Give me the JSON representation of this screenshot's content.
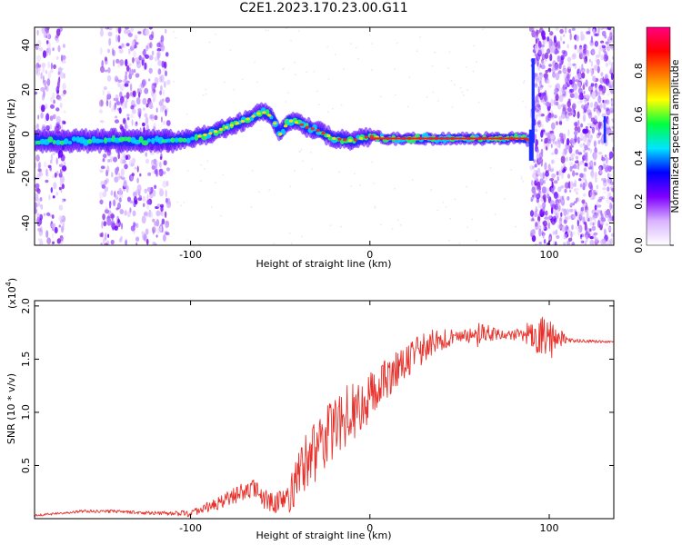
{
  "title": "C2E1.2023.170.23.00.G11",
  "chart_data": [
    {
      "type": "heatmap",
      "xlabel": "Height of straight line (km)",
      "ylabel": "Frequency (Hz)",
      "xlim": [
        -187,
        136
      ],
      "ylim": [
        -50,
        48
      ],
      "x_ticks": [
        -100,
        0,
        100
      ],
      "y_ticks": [
        -40,
        -20,
        0,
        20,
        40
      ],
      "colorbar": {
        "label": "Normalized spectral amplitude",
        "range": [
          0,
          1
        ],
        "ticks": [
          "0.0",
          "0.2",
          "0.4",
          "0.6",
          "0.8"
        ],
        "colors": [
          "#ffffff",
          "#d9b3ff",
          "#8000ff",
          "#0000ff",
          "#00e5ff",
          "#00ff40",
          "#ffff00",
          "#ff8000",
          "#ff0000",
          "#ff0080"
        ]
      },
      "ridge": {
        "x": [
          -187,
          -170,
          -150,
          -130,
          -110,
          -100,
          -90,
          -80,
          -70,
          -60,
          -55,
          -50,
          -45,
          -40,
          -35,
          -30,
          -20,
          -10,
          0,
          10,
          30,
          50,
          70,
          85,
          90
        ],
        "y": [
          -3,
          -3,
          -3,
          -3,
          -3,
          -2,
          0,
          3,
          6,
          10,
          8,
          0,
          6,
          5,
          3,
          2,
          -2,
          -3,
          -1,
          -2,
          -2,
          -2,
          -2,
          -2,
          -3
        ]
      },
      "noise_bands": [
        [
          -187,
          -170
        ],
        [
          -150,
          -112
        ],
        [
          90,
          136
        ]
      ]
    },
    {
      "type": "line",
      "xlabel": "Height of straight line (km)",
      "ylabel": "SNR (10 * v/v)",
      "y_multiplier": "(x10",
      "y_exponent": "4",
      "xlim": [
        -187,
        136
      ],
      "ylim": [
        0,
        2.05
      ],
      "x_ticks": [
        -100,
        0,
        100
      ],
      "y_ticks": [
        "0.5",
        "1.0",
        "1.5",
        "2.0"
      ],
      "color": "#e8302a",
      "envelope": {
        "x": [
          -187,
          -160,
          -140,
          -120,
          -100,
          -85,
          -75,
          -65,
          -55,
          -45,
          -35,
          -25,
          -15,
          -5,
          5,
          15,
          25,
          35,
          45,
          55,
          65,
          75,
          85,
          95,
          100,
          110,
          120,
          136
        ],
        "y": [
          0.03,
          0.07,
          0.07,
          0.05,
          0.05,
          0.14,
          0.22,
          0.28,
          0.14,
          0.18,
          0.55,
          0.75,
          0.95,
          1.05,
          1.25,
          1.4,
          1.55,
          1.65,
          1.7,
          1.72,
          1.74,
          1.73,
          1.72,
          1.72,
          1.7,
          1.68,
          1.67,
          1.66
        ]
      },
      "amplitude": {
        "x": [
          -187,
          -110,
          -90,
          -70,
          -50,
          -40,
          -30,
          -10,
          10,
          30,
          40,
          50,
          60,
          70,
          80,
          90,
          100,
          110,
          136
        ],
        "y": [
          0.01,
          0.02,
          0.05,
          0.09,
          0.11,
          0.25,
          0.3,
          0.28,
          0.18,
          0.14,
          0.12,
          0.05,
          0.12,
          0.06,
          0.04,
          0.15,
          0.22,
          0.02,
          0.01
        ]
      }
    }
  ]
}
